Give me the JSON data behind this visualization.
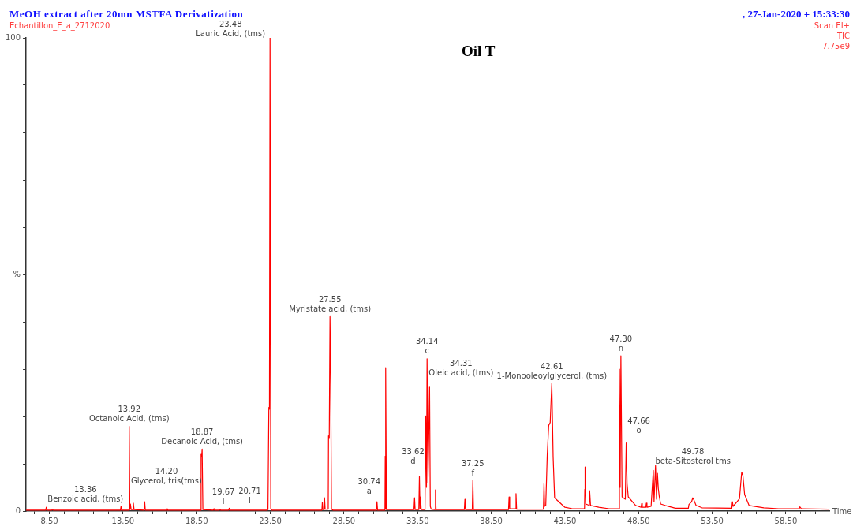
{
  "chart_data": {
    "type": "line",
    "title": "MeOH extract after 20mn MSTFA Derivatization",
    "subtitle": "Echantillon_E_a_2712020",
    "xlabel": "Time",
    "color": "#ff0000",
    "grid": false,
    "xlim": [
      6.92,
      61.45
    ],
    "ylim": [
      0,
      100
    ],
    "xticks": [
      {
        "value": 7.5,
        "label": null
      },
      {
        "value": 8.5,
        "label": "8.50"
      },
      {
        "value": 9.5,
        "label": null
      },
      {
        "value": 10.5,
        "label": null
      },
      {
        "value": 11.5,
        "label": null
      },
      {
        "value": 12.5,
        "label": null
      },
      {
        "value": 13.5,
        "label": "13.50"
      },
      {
        "value": 14.5,
        "label": null
      },
      {
        "value": 15.5,
        "label": null
      },
      {
        "value": 16.5,
        "label": null
      },
      {
        "value": 17.5,
        "label": null
      },
      {
        "value": 18.5,
        "label": "18.50"
      },
      {
        "value": 19.5,
        "label": null
      },
      {
        "value": 20.5,
        "label": null
      },
      {
        "value": 21.5,
        "label": null
      },
      {
        "value": 22.5,
        "label": null
      },
      {
        "value": 23.5,
        "label": "23.50"
      },
      {
        "value": 24.5,
        "label": null
      },
      {
        "value": 25.5,
        "label": null
      },
      {
        "value": 26.5,
        "label": null
      },
      {
        "value": 27.5,
        "label": null
      },
      {
        "value": 28.5,
        "label": "28.50"
      },
      {
        "value": 29.5,
        "label": null
      },
      {
        "value": 30.5,
        "label": null
      },
      {
        "value": 31.5,
        "label": null
      },
      {
        "value": 32.5,
        "label": null
      },
      {
        "value": 33.5,
        "label": "33.50"
      },
      {
        "value": 34.5,
        "label": null
      },
      {
        "value": 35.5,
        "label": null
      },
      {
        "value": 36.5,
        "label": null
      },
      {
        "value": 37.5,
        "label": null
      },
      {
        "value": 38.5,
        "label": "38.50"
      },
      {
        "value": 39.5,
        "label": null
      },
      {
        "value": 40.5,
        "label": null
      },
      {
        "value": 41.5,
        "label": null
      },
      {
        "value": 42.5,
        "label": null
      },
      {
        "value": 43.5,
        "label": "43.50"
      },
      {
        "value": 44.5,
        "label": null
      },
      {
        "value": 45.5,
        "label": null
      },
      {
        "value": 46.5,
        "label": null
      },
      {
        "value": 47.5,
        "label": null
      },
      {
        "value": 48.5,
        "label": "48.50"
      },
      {
        "value": 49.5,
        "label": null
      },
      {
        "value": 50.5,
        "label": null
      },
      {
        "value": 51.5,
        "label": null
      },
      {
        "value": 52.5,
        "label": null
      },
      {
        "value": 53.5,
        "label": "53.50"
      },
      {
        "value": 54.5,
        "label": null
      },
      {
        "value": 55.5,
        "label": null
      },
      {
        "value": 56.5,
        "label": null
      },
      {
        "value": 57.5,
        "label": null
      },
      {
        "value": 58.5,
        "label": "58.50"
      },
      {
        "value": 59.5,
        "label": null
      },
      {
        "value": 60.5,
        "label": null
      }
    ],
    "yticks": [
      0,
      {
        "value": 10,
        "label": null
      },
      {
        "value": 20,
        "label": null
      },
      {
        "value": 30,
        "label": null
      },
      {
        "value": 40,
        "label": null
      },
      {
        "value": 50,
        "label": "%"
      },
      {
        "value": 60,
        "label": null
      },
      {
        "value": 70,
        "label": null
      },
      {
        "value": 80,
        "label": null
      },
      {
        "value": 90,
        "label": null
      },
      100
    ],
    "x": [
      6.92,
      8.25,
      8.29,
      8.33,
      8.67,
      8.71,
      8.75,
      13.32,
      13.36,
      13.4,
      13.88,
      13.92,
      13.96,
      14.0,
      14.05,
      14.16,
      14.2,
      14.25,
      14.93,
      14.97,
      15.01,
      16.46,
      16.5,
      16.54,
      18.76,
      18.8,
      18.84,
      18.87,
      18.92,
      19.63,
      19.67,
      19.71,
      20.04,
      20.08,
      20.12,
      20.67,
      20.71,
      20.75,
      23.26,
      23.3,
      23.34,
      23.4,
      23.44,
      23.48,
      23.53,
      23.6,
      27.0,
      27.03,
      27.07,
      27.15,
      27.18,
      27.22,
      27.43,
      27.45,
      27.5,
      27.55,
      27.6,
      27.65,
      27.75,
      30.7,
      30.74,
      30.78,
      31.28,
      31.3,
      31.32,
      31.34,
      31.38,
      33.25,
      33.29,
      33.33,
      33.58,
      33.62,
      33.66,
      33.7,
      33.74,
      34.0,
      34.05,
      34.1,
      34.14,
      34.2,
      34.31,
      34.36,
      34.42,
      34.67,
      34.71,
      34.75,
      36.67,
      36.71,
      36.75,
      37.21,
      37.25,
      37.29,
      39.67,
      39.71,
      39.75,
      40.14,
      40.18,
      40.22,
      42.04,
      42.08,
      42.12,
      42.2,
      42.3,
      42.4,
      42.5,
      42.61,
      42.7,
      42.8,
      43.5,
      44.0,
      44.83,
      44.85,
      44.87,
      44.92,
      45.15,
      45.18,
      45.24,
      45.8,
      46.5,
      47.15,
      47.2,
      47.25,
      47.3,
      47.38,
      47.6,
      47.66,
      47.72,
      47.8,
      48.3,
      48.67,
      48.71,
      48.75,
      48.99,
      49.03,
      49.07,
      49.35,
      49.5,
      49.55,
      49.65,
      49.72,
      49.78,
      49.84,
      49.9,
      50.0,
      50.3,
      51.0,
      51.88,
      51.92,
      52.1,
      52.18,
      52.25,
      52.4,
      52.8,
      54.83,
      54.87,
      54.92,
      55.35,
      55.5,
      55.58,
      55.7,
      56.0,
      57.0,
      58.0,
      59.41,
      59.45,
      59.55,
      61.4
    ],
    "values": [
      0.2,
      0.2,
      0.8,
      0.2,
      0.2,
      0.4,
      0.2,
      0.2,
      1.0,
      0.2,
      0.2,
      17.9,
      0.3,
      1.5,
      0.3,
      0.3,
      1.7,
      0.3,
      0.2,
      2.0,
      0.2,
      0.2,
      0.5,
      0.2,
      0.2,
      12.0,
      11.5,
      13.1,
      0.3,
      0.2,
      0.5,
      0.2,
      0.2,
      0.4,
      0.2,
      0.2,
      0.6,
      0.2,
      0.2,
      1.0,
      0.3,
      21.9,
      21.5,
      100,
      0.5,
      0.2,
      0.2,
      1.9,
      0.3,
      0.3,
      2.8,
      0.4,
      0.4,
      15.9,
      15.5,
      41.1,
      26.9,
      0.4,
      0.2,
      0.2,
      2.0,
      0.2,
      0.2,
      11.6,
      0.5,
      30.3,
      0.3,
      0.3,
      2.8,
      0.3,
      0.3,
      7.3,
      0.5,
      3.0,
      0.3,
      0.3,
      20.1,
      5.0,
      32.2,
      6.0,
      26.2,
      1.0,
      0.4,
      0.3,
      4.5,
      0.3,
      0.3,
      2.5,
      0.3,
      0.3,
      6.5,
      0.3,
      0.3,
      3.0,
      0.5,
      0.5,
      3.7,
      0.4,
      0.4,
      5.8,
      1.0,
      1.2,
      11.8,
      18.1,
      18.7,
      27.0,
      11.4,
      2.8,
      0.8,
      0.5,
      0.5,
      4.6,
      9.3,
      1.5,
      1.2,
      4.3,
      1.2,
      0.8,
      0.5,
      0.5,
      30.0,
      5.0,
      32.8,
      3.0,
      2.5,
      14.4,
      5.8,
      3.0,
      1.2,
      0.8,
      1.6,
      0.8,
      0.8,
      1.7,
      0.8,
      1.0,
      8.6,
      2.0,
      9.6,
      2.5,
      8.0,
      4.8,
      3.2,
      1.5,
      1.2,
      0.6,
      0.6,
      1.4,
      2.0,
      2.8,
      2.4,
      1.2,
      0.7,
      0.6,
      2.0,
      1.0,
      2.6,
      8.2,
      7.6,
      3.5,
      1.2,
      0.7,
      0.5,
      0.5,
      0.9,
      0.5,
      0.4
    ],
    "annotations": [
      ", 27-Jan-2020 + 15:33:30",
      "Scan EI+",
      "TIC",
      "7.75e9",
      "Oil T",
      {
        "text": "13.36\nBenzoic acid, (tms)",
        "x": 13.36,
        "y": 1.0
      },
      {
        "text": "13.92\nOctanoic Acid, (tms)",
        "x": 13.92,
        "y": 17.9
      },
      {
        "text": "14.20\nGlycerol, tris(tms)",
        "x": 14.2,
        "y": 1.7
      },
      {
        "text": "18.87\nDecanoic Acid, (tms)",
        "x": 18.87,
        "y": 13.1
      },
      {
        "text": "19.67\nl",
        "x": 19.67,
        "y": 0.5
      },
      {
        "text": "20.71\nl",
        "x": 20.71,
        "y": 0.6
      },
      {
        "text": "23.48\nLauric Acid, (tms)",
        "x": 23.48,
        "y": 100
      },
      {
        "text": "27.55\nMyristate acid, (tms)",
        "x": 27.55,
        "y": 41.1
      },
      {
        "text": "30.74\na",
        "x": 30.74,
        "y": 2.0
      },
      {
        "text": "33.62\nd",
        "x": 33.62,
        "y": 7.3
      },
      {
        "text": "34.14\nc",
        "x": 34.14,
        "y": 32.2
      },
      {
        "text": "34.31\nOleic acid, (tms)",
        "x": 34.31,
        "y": 26.2
      },
      {
        "text": "37.25\nf",
        "x": 37.25,
        "y": 6.5
      },
      {
        "text": "42.61\n1-Monooleoylglycerol, (tms)",
        "x": 42.61,
        "y": 27.0
      },
      {
        "text": "47.30\nn",
        "x": 47.3,
        "y": 32.8
      },
      {
        "text": "47.66\no",
        "x": 47.66,
        "y": 14.4
      },
      {
        "text": "49.78\nbeta-Sitosterol tms",
        "x": 49.78,
        "y": 8.0
      }
    ]
  }
}
